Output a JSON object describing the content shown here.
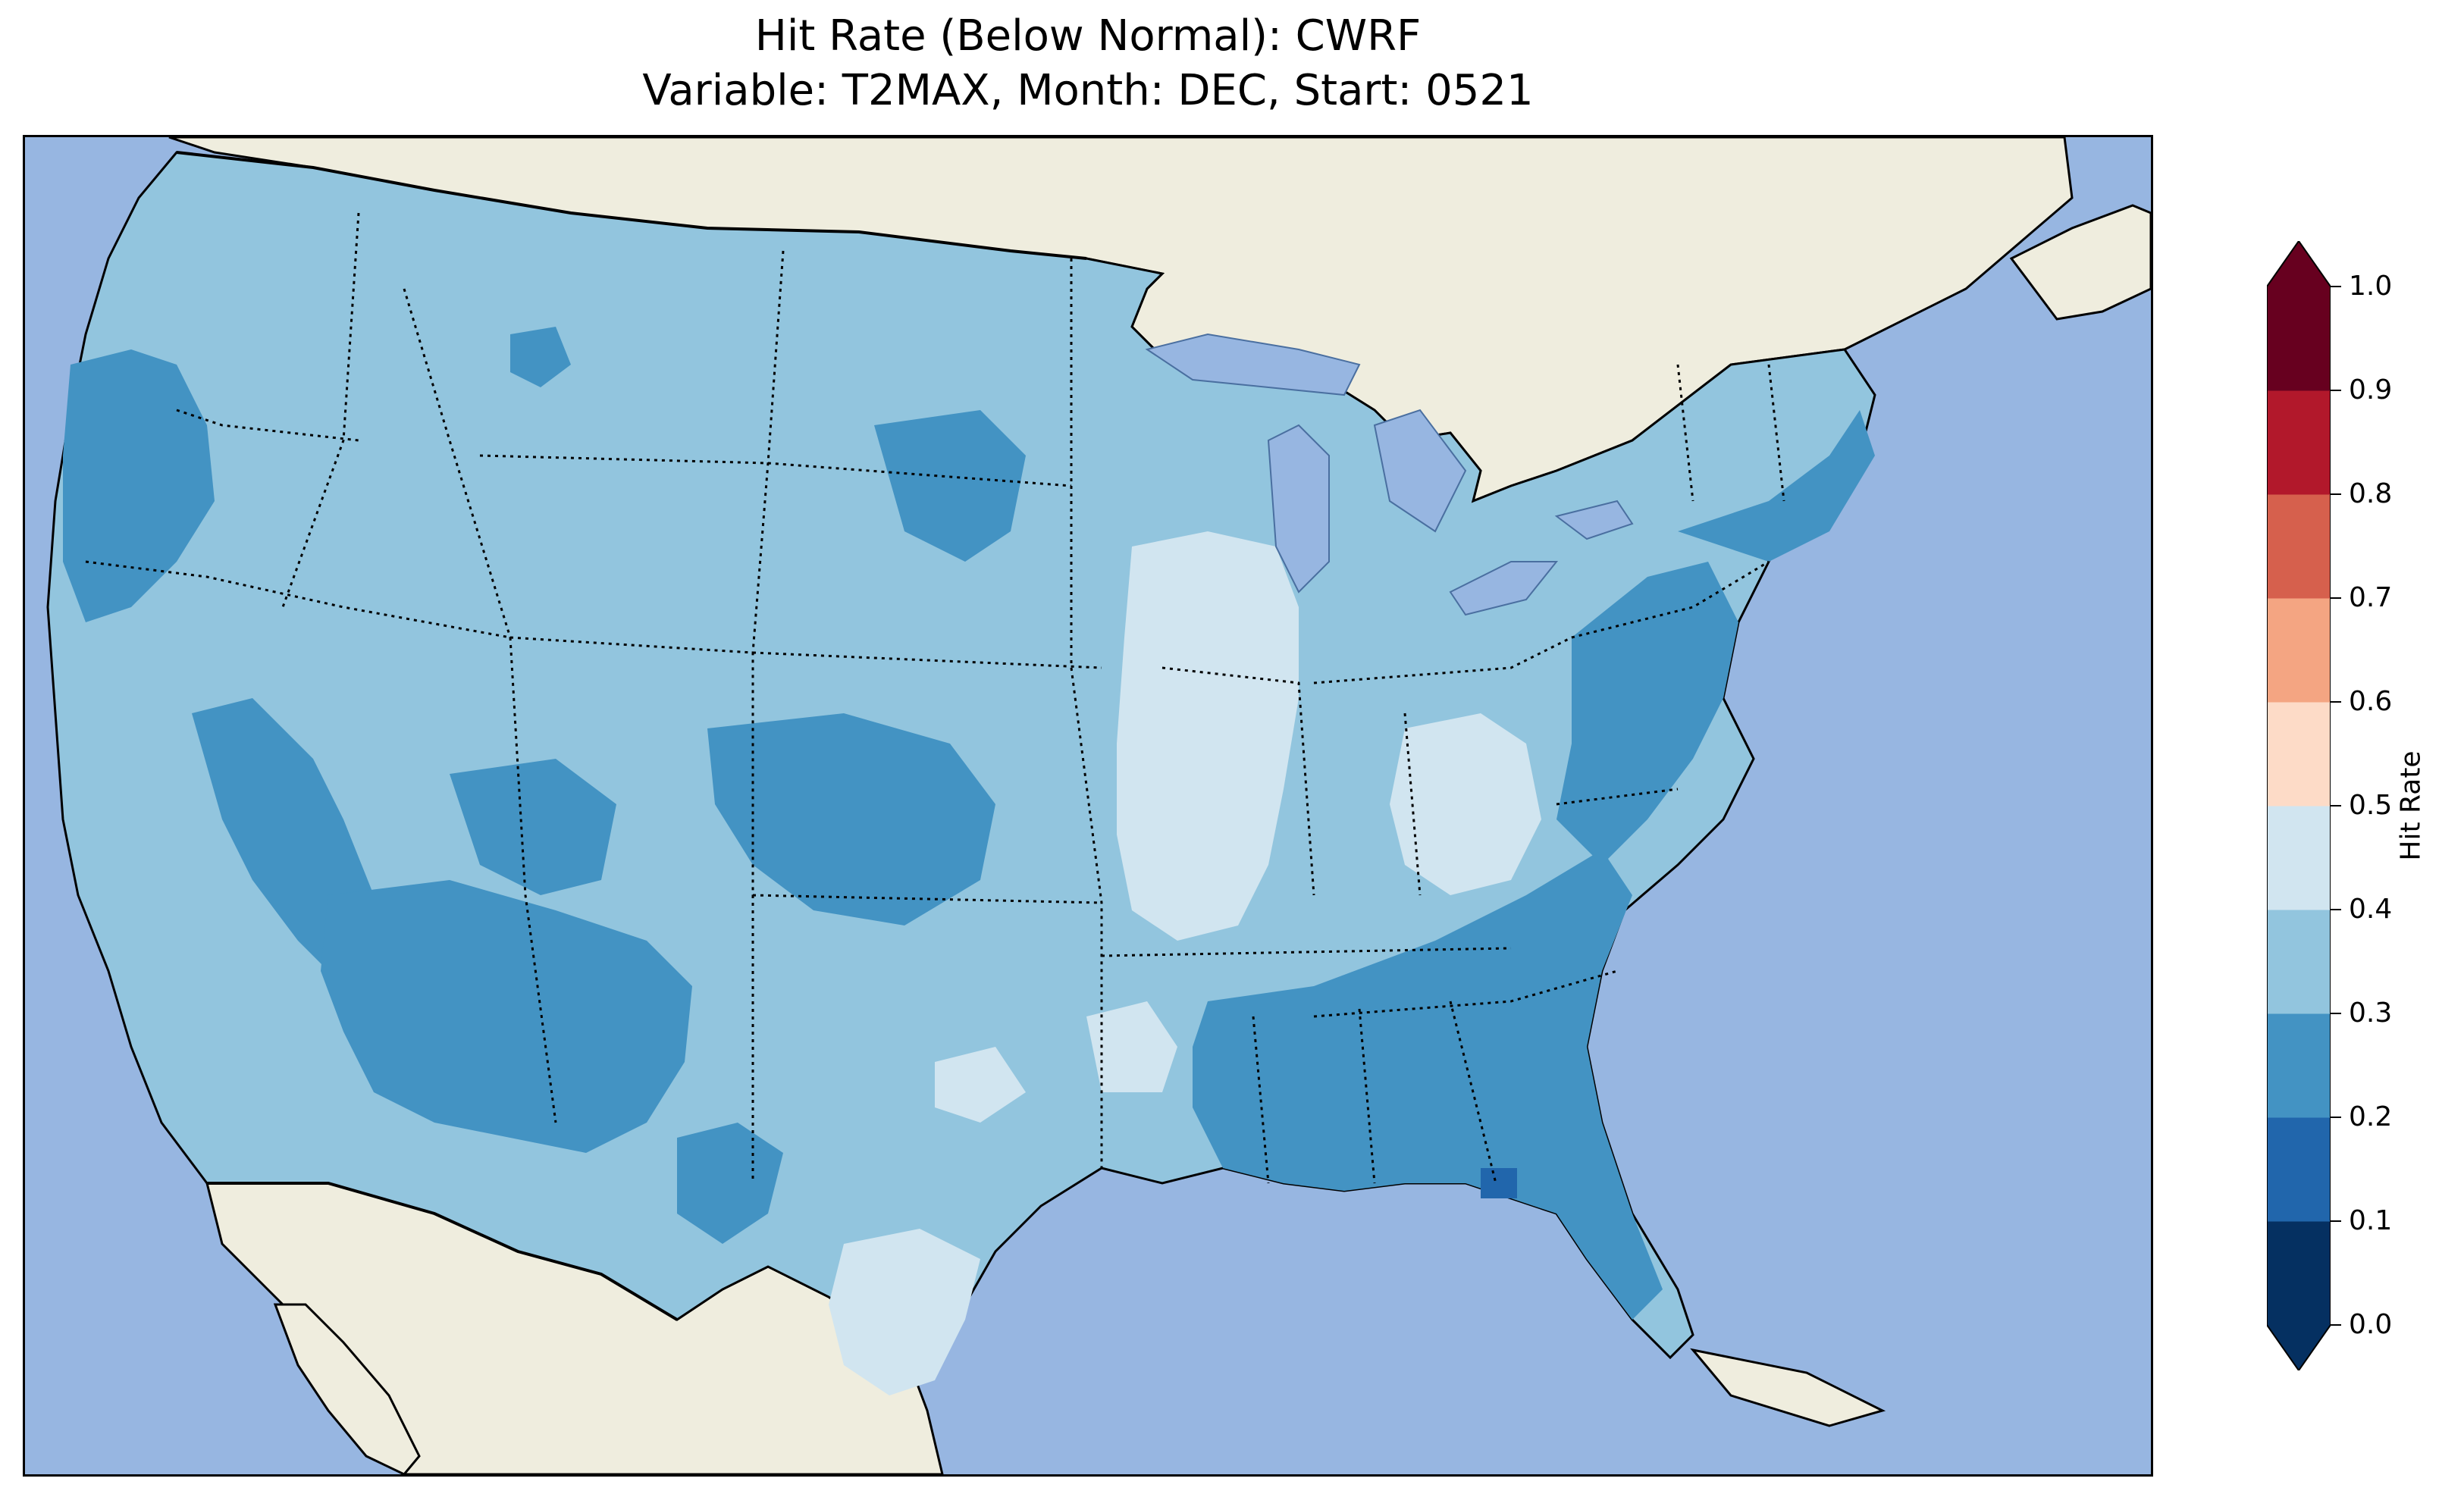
{
  "title": {
    "line1": "Hit Rate (Below Normal): CWRF",
    "line2": "Variable: T2MAX, Month: DEC, Start: 0521"
  },
  "map": {
    "region": "Continental United States",
    "colors": {
      "ocean": "#97b6e1",
      "land_outside": "#efedde",
      "lakes": "#97b6e1",
      "coast": "#000000",
      "borders": "#000000"
    },
    "dominant_bin": "0.3-0.4",
    "field": [
      {
        "region": "West / Pacific Northwest",
        "bin": "0.2-0.3"
      },
      {
        "region": "Great Basin",
        "bin": "0.3-0.4"
      },
      {
        "region": "Arizona & New Mexico",
        "bin": "0.2-0.3"
      },
      {
        "region": "Colorado / Wyoming",
        "bin": "0.2-0.3"
      },
      {
        "region": "Northern Plains",
        "bin": "0.3-0.4"
      },
      {
        "region": "Upper Midwest (MN/WI/IA/IL)",
        "bin": "0.4-0.5"
      },
      {
        "region": "Ohio Valley (IN/OH/KY)",
        "bin": "0.4-0.5"
      },
      {
        "region": "Southeast (MS/AL/GA/SC)",
        "bin": "0.2-0.3"
      },
      {
        "region": "Florida",
        "bin": "0.2-0.3"
      },
      {
        "region": "Florida Panhandle spot",
        "bin": "0.1-0.2"
      },
      {
        "region": "South Texas",
        "bin": "0.4-0.5"
      },
      {
        "region": "Northeast",
        "bin": "0.2-0.3"
      }
    ]
  },
  "colorbar": {
    "label": "Hit Rate",
    "ticks": [
      "0.0",
      "0.1",
      "0.2",
      "0.3",
      "0.4",
      "0.5",
      "0.6",
      "0.7",
      "0.8",
      "0.9",
      "1.0"
    ],
    "colors": [
      "#053061",
      "#2166ac",
      "#4393c3",
      "#92c5de",
      "#d1e5f0",
      "#fddbc7",
      "#f4a582",
      "#d6604d",
      "#b2182b",
      "#67001f"
    ],
    "under_color": "#053061",
    "over_color": "#67001f",
    "range": [
      0.0,
      1.0
    ],
    "extend": "both"
  }
}
